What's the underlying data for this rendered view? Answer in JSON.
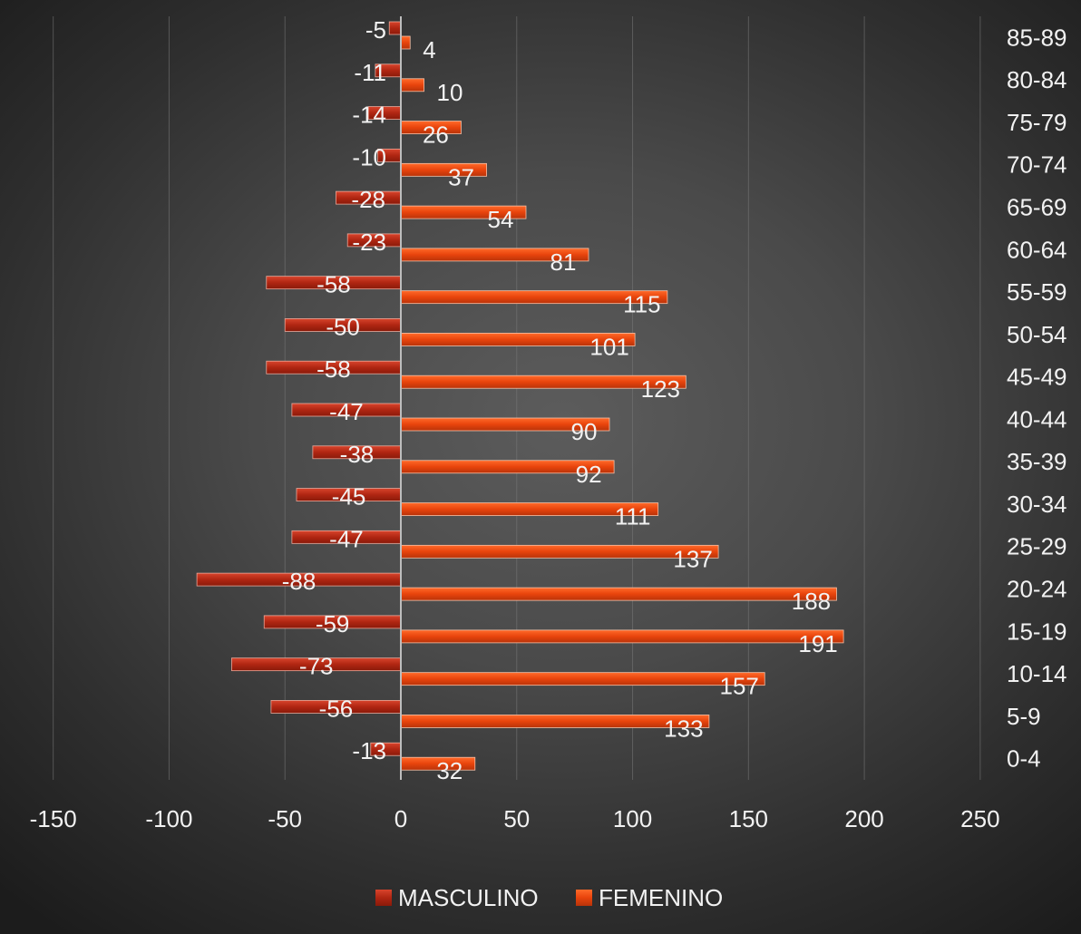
{
  "chart_data": {
    "type": "bar",
    "orientation": "horizontal",
    "title": "",
    "xlabel": "",
    "ylabel": "",
    "categories": [
      "0-4",
      "5-9",
      "10-14",
      "15-19",
      "20-24",
      "25-29",
      "30-34",
      "35-39",
      "40-44",
      "45-49",
      "50-54",
      "55-59",
      "60-64",
      "65-69",
      "70-74",
      "75-79",
      "80-84",
      "85-89"
    ],
    "series": [
      {
        "name": "MASCULINO",
        "color": "#b22712",
        "values": [
          -13,
          -56,
          -73,
          -59,
          -88,
          -47,
          -45,
          -38,
          -47,
          -58,
          -50,
          -58,
          -23,
          -28,
          -10,
          -14,
          -11,
          -5
        ]
      },
      {
        "name": "FEMENINO",
        "color": "#e8440c",
        "values": [
          32,
          133,
          157,
          191,
          188,
          137,
          111,
          92,
          90,
          123,
          101,
          115,
          81,
          54,
          37,
          26,
          10,
          4
        ]
      }
    ],
    "xlim": [
      -150,
      250
    ],
    "xticks": [
      -150,
      -100,
      -50,
      0,
      50,
      100,
      150,
      200,
      250
    ],
    "grid": true,
    "legend_position": "bottom",
    "category_axis_position": "right"
  }
}
